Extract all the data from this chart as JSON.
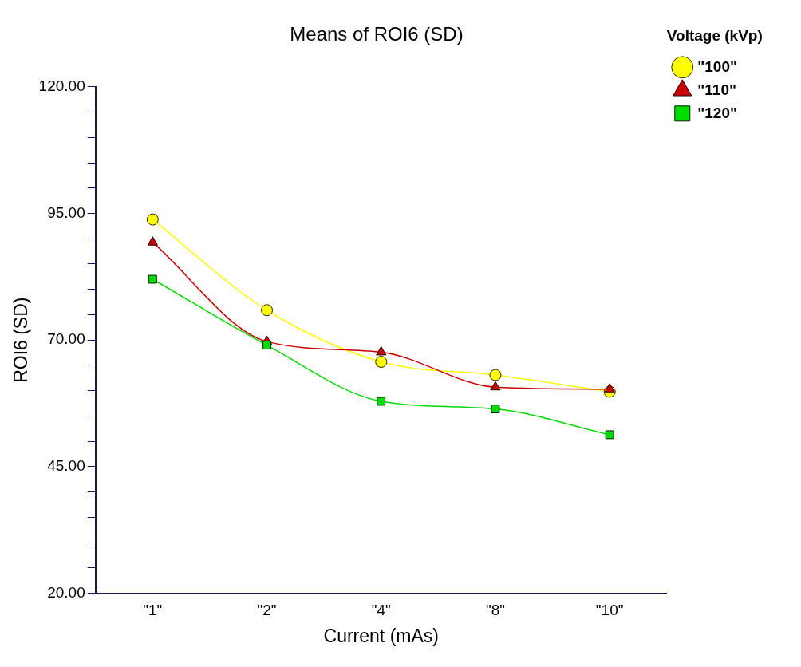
{
  "chart_data": {
    "type": "line",
    "title": "Means of ROI6 (SD)",
    "xlabel": "Current (mAs)",
    "ylabel": "ROI6 (SD)",
    "legend_title": "Voltage (kVp)",
    "categories": [
      "\"1\"",
      "\"2\"",
      "\"4\"",
      "\"8\"",
      "\"10\""
    ],
    "series": [
      {
        "name": "\"100\"",
        "color": "#ffff00",
        "marker": "circle",
        "values": [
          93.8,
          75.9,
          65.7,
          63.1,
          59.8
        ]
      },
      {
        "name": "\"110\"",
        "color": "#cc0000",
        "marker": "triangle",
        "values": [
          89.3,
          69.7,
          67.6,
          60.7,
          60.3
        ]
      },
      {
        "name": "\"120\"",
        "color": "#00dd00",
        "marker": "square",
        "values": [
          82.0,
          69.0,
          57.9,
          56.4,
          51.3
        ]
      }
    ],
    "ylim": [
      20,
      120
    ],
    "yticks": [
      {
        "value": 20,
        "label": "20.00"
      },
      {
        "value": 25,
        "label": null
      },
      {
        "value": 30,
        "label": null
      },
      {
        "value": 35,
        "label": null
      },
      {
        "value": 40,
        "label": null
      },
      {
        "value": 45,
        "label": "45.00"
      },
      {
        "value": 50,
        "label": null
      },
      {
        "value": 55,
        "label": null
      },
      {
        "value": 60,
        "label": null
      },
      {
        "value": 65,
        "label": null
      },
      {
        "value": 70,
        "label": "70.00"
      },
      {
        "value": 75,
        "label": null
      },
      {
        "value": 80,
        "label": null
      },
      {
        "value": 85,
        "label": null
      },
      {
        "value": 90,
        "label": null
      },
      {
        "value": 95,
        "label": "95.00"
      },
      {
        "value": 100,
        "label": null
      },
      {
        "value": 105,
        "label": null
      },
      {
        "value": 110,
        "label": null
      },
      {
        "value": 115,
        "label": null
      },
      {
        "value": 120,
        "label": "120.00"
      }
    ],
    "grid": false,
    "legend": "top right",
    "line_style": "solid"
  }
}
